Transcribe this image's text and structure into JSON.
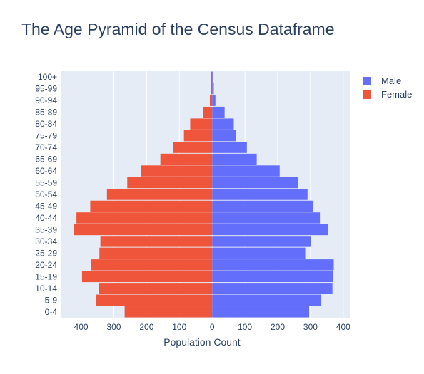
{
  "chart_data": {
    "type": "bar",
    "orientation": "horizontal",
    "title": "The Age Pyramid of the Census Dataframe",
    "xlabel": "Population Count",
    "ylabel": "",
    "categories": [
      "0-4",
      "5-9",
      "10-14",
      "15-19",
      "20-24",
      "25-29",
      "30-34",
      "35-39",
      "40-44",
      "45-49",
      "50-54",
      "55-59",
      "60-64",
      "65-69",
      "70-74",
      "75-79",
      "80-84",
      "85-89",
      "90-94",
      "95-99",
      "100+"
    ],
    "xlim": [
      -460,
      420
    ],
    "x_ticks": [
      -400,
      -300,
      -200,
      -100,
      0,
      100,
      200,
      300,
      400
    ],
    "x_tick_labels": [
      "400",
      "300",
      "200",
      "100",
      "0",
      "100",
      "200",
      "300",
      "400"
    ],
    "grid": true,
    "legend_position": "top-right",
    "series": [
      {
        "name": "Male",
        "color": "#636efa",
        "values": [
          296,
          333,
          367,
          369,
          371,
          284,
          301,
          353,
          331,
          309,
          291,
          262,
          206,
          136,
          106,
          72,
          66,
          38,
          10,
          5,
          3
        ]
      },
      {
        "name": "Female",
        "color": "#ef553b",
        "values": [
          -267,
          -355,
          -346,
          -397,
          -369,
          -344,
          -341,
          -423,
          -414,
          -372,
          -321,
          -259,
          -217,
          -158,
          -120,
          -86,
          -67,
          -28,
          -7,
          -4,
          -3
        ]
      }
    ]
  }
}
